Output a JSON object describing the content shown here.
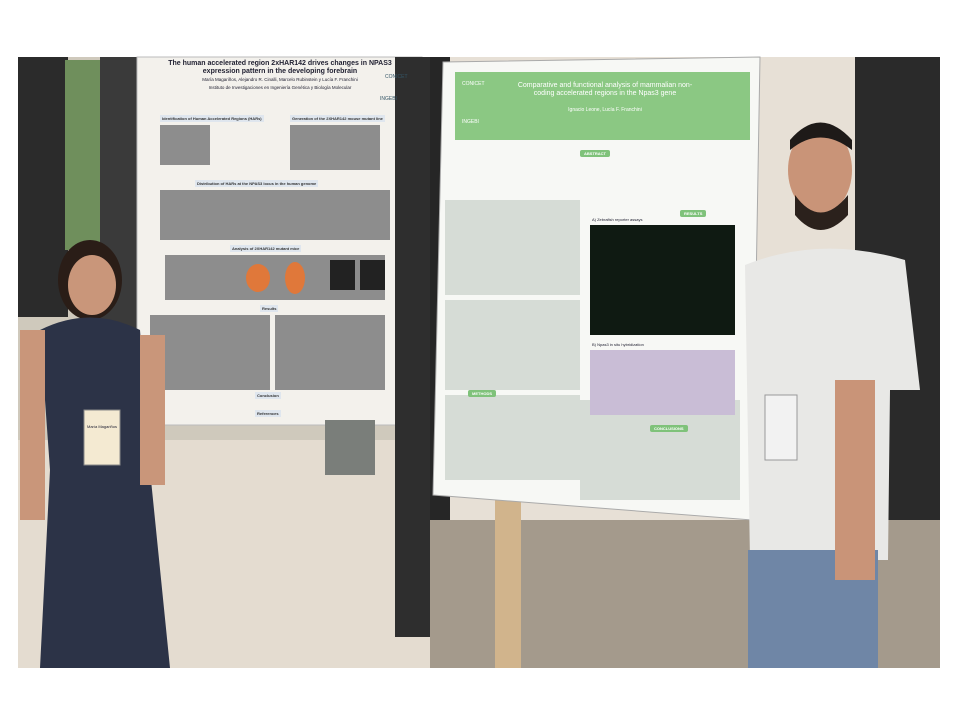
{
  "left_poster": {
    "title": "The human accelerated region 2xHAR142 drives changes in NPAS3 expression pattern in the developing forebrain",
    "authors": "María Magariños, Alejandro R. Cinalli, Marcelo Rubinstein y Lucía F. Franchini",
    "institute": "Instituto de Investigaciones en Ingeniería Genética y Biología Molecular",
    "logo": [
      "CONICET",
      "INGEBI"
    ],
    "sections": [
      "Identification of Human Accelerated Regions (HARs)",
      "Generation of the 2XHAR142 mouse mutant line",
      "Distribution of HARs at the NPAS3 locus in the human genome",
      "Analysis of 2XHAR142 mutant mice",
      "Results",
      "Conclusion",
      "References"
    ]
  },
  "badge": "María Magariños",
  "right_poster": {
    "title": "Comparative and functional analysis of mammalian non-coding accelerated regions in the Npas3 gene",
    "authors": "Ignacio Leone, Lucía F. Franchini",
    "logo": [
      "CONICET",
      "INGEBI"
    ],
    "sections": [
      "ABSTRACT",
      "RESULTS",
      "A) Zebrafish reporter assays",
      "B) Npas3 in situ hybridization",
      "METHODS",
      "CONCLUSIONS"
    ]
  }
}
